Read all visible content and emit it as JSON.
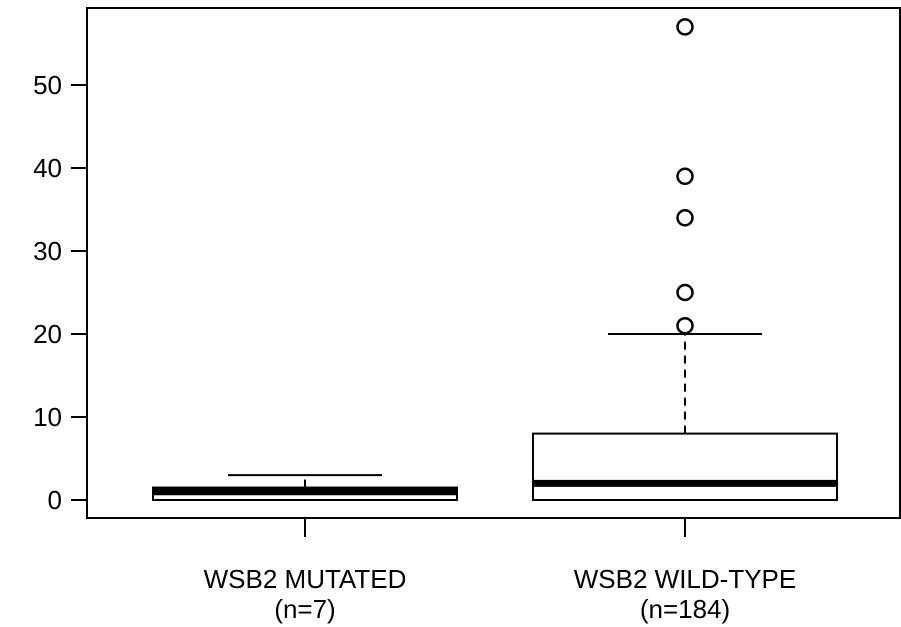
{
  "chart_data": {
    "type": "boxplot",
    "title": "",
    "xlabel": "",
    "ylabel": "",
    "ylim": [
      -2,
      60
    ],
    "yticks": [
      0,
      10,
      20,
      30,
      40,
      50
    ],
    "grid": false,
    "categories": [
      {
        "label": "WSB2 MUTATED",
        "sublabel": "(n=7)"
      },
      {
        "label": "WSB2 WILD-TYPE",
        "sublabel": "(n=184)"
      }
    ],
    "boxes": [
      {
        "whisker_low": 0,
        "q1": 0,
        "median": 1,
        "q3": 1.5,
        "whisker_high": 3,
        "outliers": []
      },
      {
        "whisker_low": 0,
        "q1": 0,
        "median": 2,
        "q3": 8,
        "whisker_high": 20,
        "outliers": [
          21,
          25,
          34,
          39,
          57
        ]
      }
    ],
    "colors": {
      "stroke": "#000000",
      "box_fill": "#ffffff",
      "background": "#ffffff"
    }
  }
}
